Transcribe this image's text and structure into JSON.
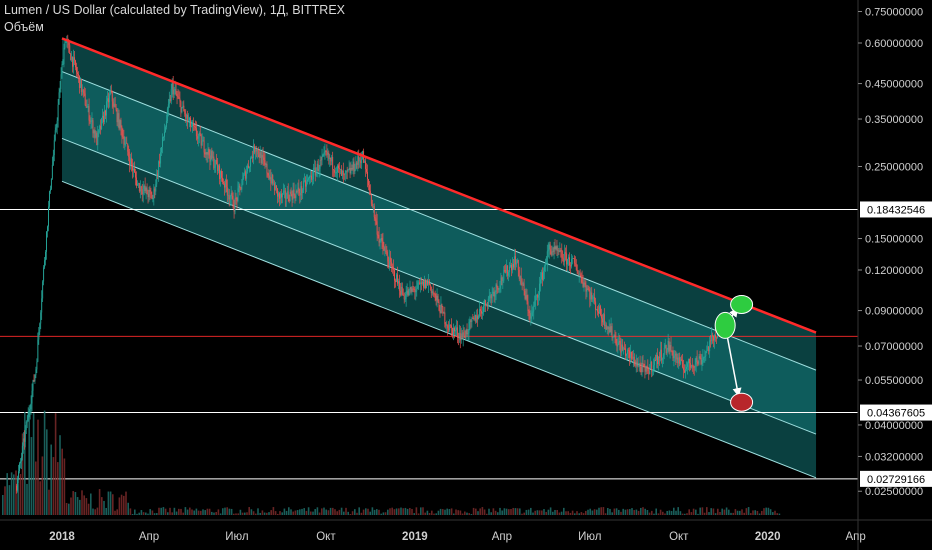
{
  "header": {
    "symbol_line": "Lumen / US Dollar (calculated by TradingView), 1Д, BITTREX",
    "volume_label": "Объём"
  },
  "colors": {
    "background": "#000000",
    "channel_fill": "#1aa7a7",
    "channel_line": "#9fe0e0",
    "resistance_line": "#ff2a2a",
    "up_candle": "#26a69a",
    "down_candle": "#ef5350",
    "marker_green": "#2ecc40",
    "marker_red": "#b8262b",
    "arrow": "#ffffff",
    "h_line": "#ffffff",
    "price_line": "#ff2a2a",
    "axis_text": "#d0d0d0"
  },
  "chart_data": {
    "type": "candlestick",
    "y_scale": "log",
    "ylim": [
      0.023,
      0.78
    ],
    "price_axis_ticks": [
      "0.75000000",
      "0.60000000",
      "0.45000000",
      "0.35000000",
      "0.25000000",
      "0.15000000",
      "0.12000000",
      "0.09000000",
      "0.07000000",
      "0.05500000",
      "0.04000000",
      "0.03200000",
      "0.02500000"
    ],
    "price_axis_values": [
      0.75,
      0.6,
      0.45,
      0.35,
      0.25,
      0.15,
      0.12,
      0.09,
      0.07,
      0.055,
      0.04,
      0.032,
      0.025
    ],
    "time_axis_ticks": [
      "2018",
      "Апр",
      "Июл",
      "Окт",
      "2019",
      "Апр",
      "Июл",
      "Окт",
      "2020",
      "Апр"
    ],
    "time_axis_dates": [
      "2018-01-01",
      "2018-04-01",
      "2018-07-01",
      "2018-10-01",
      "2019-01-01",
      "2019-04-01",
      "2019-07-01",
      "2019-10-01",
      "2020-01-01",
      "2020-04-01"
    ],
    "highlighted_levels": [
      {
        "label": "0.18432546",
        "value": 0.18432546
      },
      {
        "label": "0.04367605",
        "value": 0.04367605
      },
      {
        "label": "0.02729166",
        "value": 0.02729166
      }
    ],
    "current_price": 0.075,
    "channel": {
      "start_date": "2018-01-01",
      "end_date": "2020-02-20",
      "top_line": [
        0.62,
        0.077
      ],
      "upper_mid_line": [
        0.49,
        0.059
      ],
      "lower_mid_line": [
        0.305,
        0.0375
      ],
      "bottom_line": [
        0.225,
        0.0275
      ]
    },
    "price_path": [
      [
        "2017-11-15",
        0.026
      ],
      [
        "2017-12-05",
        0.06
      ],
      [
        "2017-12-20",
        0.22
      ],
      [
        "2018-01-04",
        0.62
      ],
      [
        "2018-01-15",
        0.5
      ],
      [
        "2018-02-06",
        0.3
      ],
      [
        "2018-02-20",
        0.42
      ],
      [
        "2018-03-20",
        0.22
      ],
      [
        "2018-04-05",
        0.2
      ],
      [
        "2018-04-25",
        0.44
      ],
      [
        "2018-05-10",
        0.35
      ],
      [
        "2018-06-10",
        0.25
      ],
      [
        "2018-06-28",
        0.19
      ],
      [
        "2018-07-20",
        0.29
      ],
      [
        "2018-08-14",
        0.2
      ],
      [
        "2018-09-05",
        0.21
      ],
      [
        "2018-10-01",
        0.27
      ],
      [
        "2018-10-20",
        0.23
      ],
      [
        "2018-11-08",
        0.27
      ],
      [
        "2018-11-25",
        0.15
      ],
      [
        "2018-12-20",
        0.1
      ],
      [
        "2019-01-15",
        0.11
      ],
      [
        "2019-02-05",
        0.08
      ],
      [
        "2019-02-20",
        0.075
      ],
      [
        "2019-03-10",
        0.09
      ],
      [
        "2019-04-15",
        0.13
      ],
      [
        "2019-05-01",
        0.085
      ],
      [
        "2019-05-20",
        0.14
      ],
      [
        "2019-06-15",
        0.125
      ],
      [
        "2019-07-10",
        0.09
      ],
      [
        "2019-08-01",
        0.07
      ],
      [
        "2019-08-28",
        0.058
      ],
      [
        "2019-09-20",
        0.07
      ],
      [
        "2019-10-05",
        0.06
      ],
      [
        "2019-10-25",
        0.064
      ],
      [
        "2019-11-12",
        0.08
      ]
    ],
    "forecast_targets": [
      {
        "date": "2019-12-05",
        "price": 0.094,
        "marker": "green"
      },
      {
        "date": "2019-12-05",
        "price": 0.047,
        "marker": "red"
      }
    ],
    "forecast_origin": {
      "date": "2019-11-18",
      "price": 0.081
    }
  }
}
